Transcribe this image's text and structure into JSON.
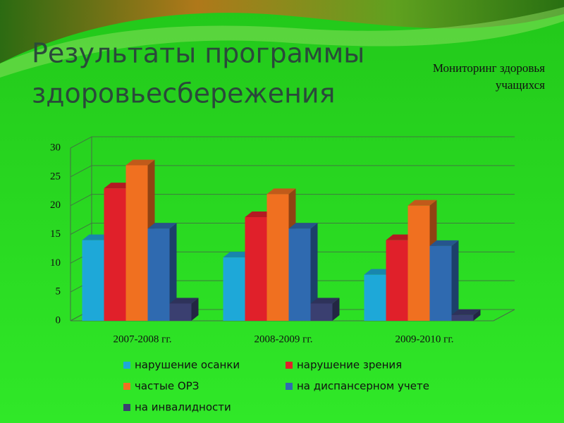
{
  "title": [
    "Результаты программы",
    "здоровьесбережения"
  ],
  "chart_data": {
    "type": "bar3d",
    "title": [
      "Мониторинг здоровья",
      "учащихся"
    ],
    "categories": [
      "2007-2008 гг.",
      "2008-2009 гг.",
      "2009-2010 гг."
    ],
    "series": [
      {
        "name": "нарушение осанки",
        "color": "#1ea8d8",
        "values": [
          14,
          11,
          8
        ]
      },
      {
        "name": "нарушение зрения",
        "color": "#e0202a",
        "values": [
          23,
          18,
          14
        ]
      },
      {
        "name": "частые ОРЗ",
        "color": "#f07020",
        "values": [
          27,
          22,
          20
        ]
      },
      {
        "name": "на диспансерном учете",
        "color": "#2f6ab0",
        "values": [
          16,
          16,
          13
        ]
      },
      {
        "name": "на инвалидности",
        "color": "#3a3f70",
        "values": [
          3,
          3,
          1
        ]
      }
    ],
    "ylim": [
      0,
      30
    ],
    "yticks": [
      0,
      5,
      10,
      15,
      20,
      25,
      30
    ],
    "grid": true
  }
}
